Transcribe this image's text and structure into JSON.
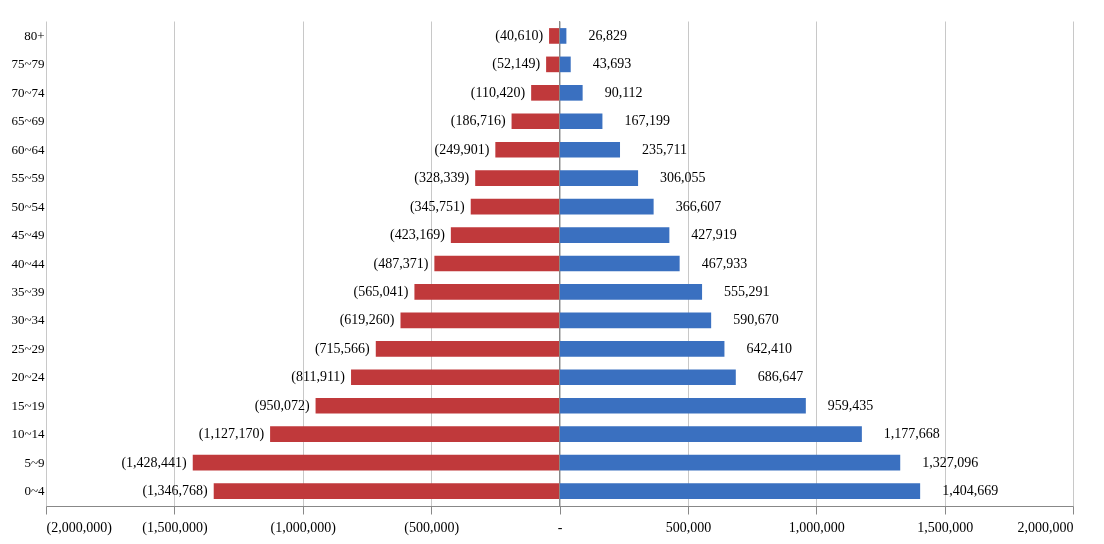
{
  "chart_data": {
    "type": "bar",
    "orientation": "horizontal",
    "categories": [
      "80+",
      "75~79",
      "70~74",
      "65~69",
      "60~64",
      "55~59",
      "50~54",
      "45~49",
      "40~44",
      "35~39",
      "30~34",
      "25~29",
      "20~24",
      "15~19",
      "10~14",
      "5~9",
      "0~4"
    ],
    "series": [
      {
        "color": "#c0393b",
        "values": [
          -40610,
          -52149,
          -110420,
          -186716,
          -249901,
          -328339,
          -345751,
          -423169,
          -487371,
          -565041,
          -619260,
          -715566,
          -811911,
          -950072,
          -1127170,
          -1428441,
          -1346768
        ],
        "value_labels": [
          "(40,610)",
          "(52,149)",
          "(110,420)",
          "(186,716)",
          "(249,901)",
          "(328,339)",
          "(345,751)",
          "(423,169)",
          "(487,371)",
          "(565,041)",
          "(619,260)",
          "(715,566)",
          "(811,911)",
          "(950,072)",
          "(1,127,170)",
          "(1,428,441)",
          "(1,346,768)"
        ]
      },
      {
        "color": "#3a70c0",
        "values": [
          26829,
          43693,
          90112,
          167199,
          235711,
          306055,
          366607,
          427919,
          467933,
          555291,
          590670,
          642410,
          686647,
          959435,
          1177668,
          1327096,
          1404669
        ],
        "value_labels": [
          "26,829",
          "43,693",
          "90,112",
          "167,199",
          "235,711",
          "306,055",
          "366,607",
          "427,919",
          "467,933",
          "555,291",
          "590,670",
          "642,410",
          "686,647",
          "959,435",
          "1,177,668",
          "1,327,096",
          "1,404,669"
        ]
      }
    ],
    "xlim": [
      -2000000,
      2000000
    ],
    "xticks": [
      {
        "value": -2000000,
        "label": "(2,000,000)"
      },
      {
        "value": -1500000,
        "label": "(1,500,000)"
      },
      {
        "value": -1000000,
        "label": "(1,000,000)"
      },
      {
        "value": -500000,
        "label": "(500,000)"
      },
      {
        "value": 0,
        "label": "-"
      },
      {
        "value": 500000,
        "label": "500,000"
      },
      {
        "value": 1000000,
        "label": "1,000,000"
      },
      {
        "value": 1500000,
        "label": "1,500,000"
      },
      {
        "value": 2000000,
        "label": "2,000,000"
      }
    ],
    "grid": "x",
    "stacked": true
  }
}
